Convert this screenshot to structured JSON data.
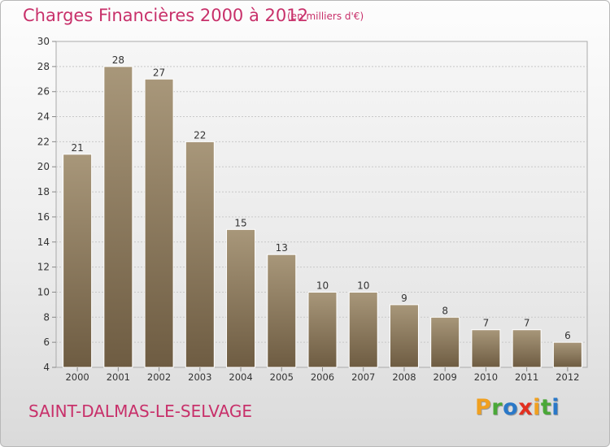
{
  "chart_data": {
    "type": "bar",
    "title": "Charges Financières 2000 à 2012",
    "subtitle": "(en milliers d'€)",
    "categories": [
      "2000",
      "2001",
      "2002",
      "2003",
      "2004",
      "2005",
      "2006",
      "2007",
      "2008",
      "2009",
      "2010",
      "2011",
      "2012"
    ],
    "values": [
      21,
      28,
      27,
      22,
      15,
      13,
      10,
      10,
      9,
      8,
      7,
      7,
      6
    ],
    "ylim": [
      4,
      30
    ],
    "yticks": [
      4,
      6,
      8,
      10,
      12,
      14,
      16,
      18,
      20,
      22,
      24,
      26,
      28,
      30
    ],
    "grid": true,
    "xlabel": "",
    "ylabel": "",
    "colors": {
      "bar_light": "#a8977a",
      "bar_dark": "#6e5c42",
      "accent": "#c8306a"
    }
  },
  "commune": "SAINT-DALMAS-LE-SELVAGE",
  "logo": {
    "letters": [
      "P",
      "r",
      "o",
      "x",
      "i",
      "t",
      "i"
    ],
    "colors": [
      "#f0a020",
      "#4aa838",
      "#2a78c8",
      "#e23020",
      "#f0a020",
      "#4aa838",
      "#2a78c8"
    ]
  }
}
